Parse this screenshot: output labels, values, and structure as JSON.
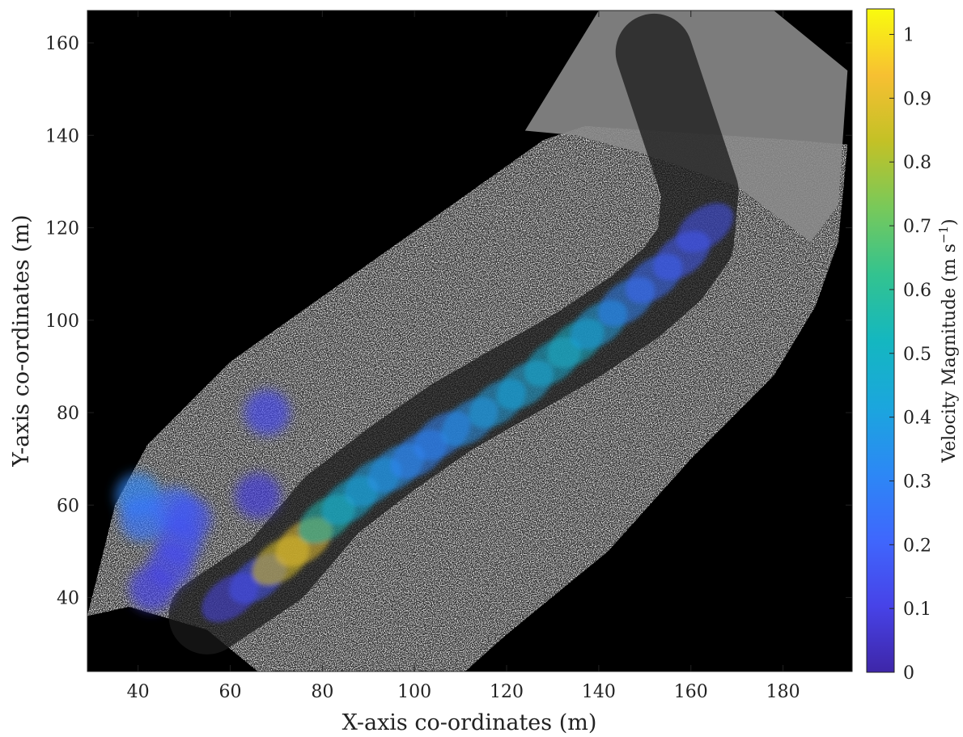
{
  "chart_data": {
    "type": "heatmap",
    "xlabel": "X-axis co-ordinates (m)",
    "ylabel": "Y-axis co-ordinates (m)",
    "xlim": [
      29,
      195
    ],
    "ylim": [
      24,
      167
    ],
    "xticks": [
      40,
      60,
      80,
      100,
      120,
      140,
      160,
      180
    ],
    "yticks": [
      40,
      60,
      80,
      100,
      120,
      140,
      160
    ],
    "background_color": "#000000",
    "grid": false,
    "colorbar": {
      "label": "Velocity Magnitude",
      "unit_base": "(m s",
      "unit_exp": "−1",
      "unit_close": ")",
      "range": [
        0,
        1.04
      ],
      "ticks": [
        0,
        0.1,
        0.2,
        0.3,
        0.4,
        0.5,
        0.6,
        0.7,
        0.8,
        0.9,
        1
      ],
      "tick_labels": [
        "0",
        "0.1",
        "0.2",
        "0.3",
        "0.4",
        "0.5",
        "0.6",
        "0.7",
        "0.8",
        "0.9",
        "1"
      ],
      "colormap": "parula",
      "colormap_stops": [
        "#3e26a8",
        "#4743e8",
        "#3f67fd",
        "#2c88f5",
        "#1ba6dd",
        "#14b7c0",
        "#33c38f",
        "#78c95a",
        "#c3c126",
        "#f7c032",
        "#f9fb0e"
      ]
    },
    "field_polygon": [
      [
        29,
        36
      ],
      [
        35,
        60
      ],
      [
        42,
        73
      ],
      [
        60,
        91
      ],
      [
        128,
        139
      ],
      [
        137,
        142
      ],
      [
        182,
        139
      ],
      [
        194,
        138
      ],
      [
        192,
        117
      ],
      [
        187,
        103
      ],
      [
        178,
        88
      ],
      [
        173,
        83
      ],
      [
        160,
        70
      ],
      [
        142,
        50
      ],
      [
        120,
        32
      ],
      [
        111,
        24
      ],
      [
        66,
        24
      ],
      [
        55,
        33
      ],
      [
        38,
        38
      ]
    ],
    "upper_field_polygon": [
      [
        124,
        141
      ],
      [
        140,
        167
      ],
      [
        178,
        167
      ],
      [
        194,
        154
      ],
      [
        192,
        125
      ],
      [
        186,
        117
      ],
      [
        170,
        129
      ],
      [
        150,
        136
      ],
      [
        135,
        140
      ]
    ],
    "river_centerline": [
      [
        55,
        36
      ],
      [
        70,
        46
      ],
      [
        82,
        60
      ],
      [
        95,
        70
      ],
      [
        108,
        79
      ],
      [
        122,
        87
      ],
      [
        136,
        95
      ],
      [
        148,
        103
      ],
      [
        156,
        110
      ],
      [
        161,
        117
      ],
      [
        162,
        128
      ],
      [
        158,
        140
      ],
      [
        152,
        158
      ]
    ],
    "velocity_segments": [
      {
        "x": 60,
        "y": 40,
        "v": 0.1
      },
      {
        "x": 66,
        "y": 44,
        "v": 0.15
      },
      {
        "x": 71,
        "y": 48,
        "v": 0.88
      },
      {
        "x": 76,
        "y": 52,
        "v": 0.9
      },
      {
        "x": 81,
        "y": 57,
        "v": 0.55
      },
      {
        "x": 86,
        "y": 61,
        "v": 0.45
      },
      {
        "x": 91,
        "y": 65,
        "v": 0.4
      },
      {
        "x": 96,
        "y": 68,
        "v": 0.35
      },
      {
        "x": 101,
        "y": 71,
        "v": 0.3
      },
      {
        "x": 106,
        "y": 75,
        "v": 0.3
      },
      {
        "x": 112,
        "y": 78,
        "v": 0.35
      },
      {
        "x": 118,
        "y": 82,
        "v": 0.4
      },
      {
        "x": 124,
        "y": 86,
        "v": 0.42
      },
      {
        "x": 130,
        "y": 91,
        "v": 0.45
      },
      {
        "x": 135,
        "y": 95,
        "v": 0.48
      },
      {
        "x": 140,
        "y": 99,
        "v": 0.4
      },
      {
        "x": 146,
        "y": 104,
        "v": 0.3
      },
      {
        "x": 152,
        "y": 109,
        "v": 0.22
      },
      {
        "x": 158,
        "y": 114,
        "v": 0.18
      },
      {
        "x": 163,
        "y": 120,
        "v": 0.15
      }
    ],
    "pool_blobs": [
      {
        "x": 40,
        "y": 62,
        "v": 0.3
      },
      {
        "x": 41,
        "y": 57,
        "v": 0.25
      },
      {
        "x": 48,
        "y": 59,
        "v": 0.22
      },
      {
        "x": 51,
        "y": 57,
        "v": 0.15
      },
      {
        "x": 49,
        "y": 52,
        "v": 0.15
      },
      {
        "x": 47,
        "y": 47,
        "v": 0.12
      },
      {
        "x": 43,
        "y": 42,
        "v": 0.1
      },
      {
        "x": 68,
        "y": 80,
        "v": 0.12
      },
      {
        "x": 66,
        "y": 62,
        "v": 0.08
      }
    ]
  }
}
